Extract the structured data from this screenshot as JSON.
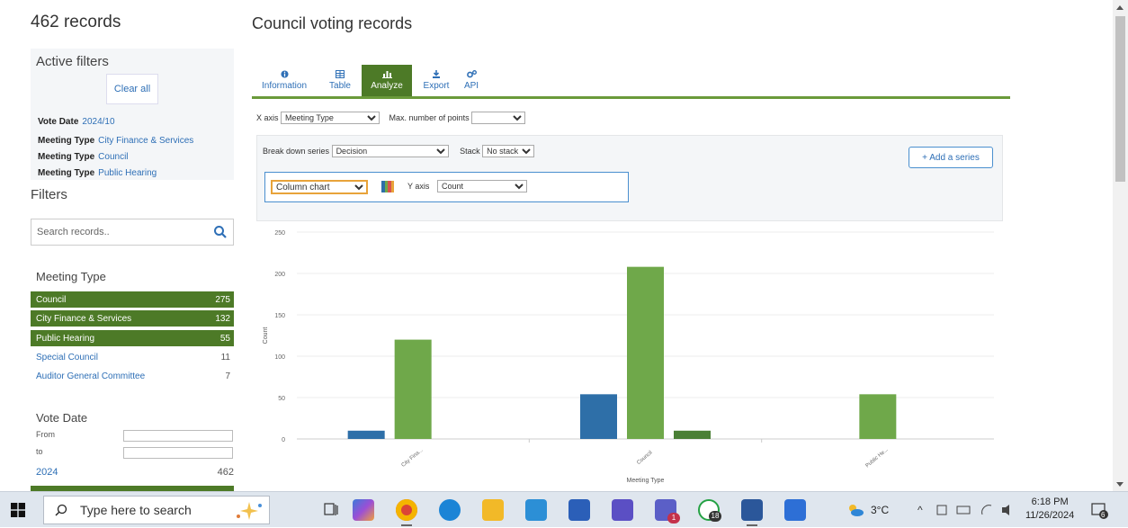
{
  "sidebar": {
    "records_count": "462 records",
    "active_filters": {
      "title": "Active filters",
      "clear_all": "Clear all",
      "items": [
        {
          "label": "Vote Date",
          "value": "2024/10"
        },
        {
          "label": "Meeting Type",
          "value": "City Finance & Services"
        },
        {
          "label": "Meeting Type",
          "value": "Council"
        },
        {
          "label": "Meeting Type",
          "value": "Public Hearing"
        }
      ]
    },
    "filters_title": "Filters",
    "search_placeholder": "Search records..",
    "meeting_type": {
      "title": "Meeting Type",
      "items": [
        {
          "label": "Council",
          "count": "275",
          "selected": true
        },
        {
          "label": "City Finance & Services",
          "count": "132",
          "selected": true
        },
        {
          "label": "Public Hearing",
          "count": "55",
          "selected": true
        },
        {
          "label": "Special Council",
          "count": "11",
          "selected": false
        },
        {
          "label": "Auditor General Committee",
          "count": "7",
          "selected": false
        }
      ]
    },
    "vote_date": {
      "title": "Vote Date",
      "from_label": "From",
      "to_label": "to",
      "year": "2024",
      "year_count": "462"
    }
  },
  "main": {
    "title": "Council voting records",
    "tabs": [
      {
        "label": "Information",
        "icon": "info-icon",
        "active": false
      },
      {
        "label": "Table",
        "icon": "table-icon",
        "active": false
      },
      {
        "label": "Analyze",
        "icon": "chart-icon",
        "active": true
      },
      {
        "label": "Export",
        "icon": "download-icon",
        "active": false
      },
      {
        "label": "API",
        "icon": "gears-icon",
        "active": false
      }
    ],
    "controls": {
      "x_axis_label": "X axis",
      "x_axis_value": "Meeting Type",
      "max_points_label": "Max. number of points",
      "max_points_value": "",
      "breakdown_label": "Break down series",
      "breakdown_value": "Decision",
      "stack_label": "Stack",
      "stack_value": "No stack",
      "chart_type_value": "Column chart",
      "y_axis_label": "Y axis",
      "y_axis_value": "Count",
      "add_series": "+ Add a series"
    }
  },
  "chart_data": {
    "type": "bar",
    "categories": [
      "City Fina...",
      "Council",
      "Public He..."
    ],
    "series": [
      {
        "color": "#2e6fa8",
        "values": [
          10,
          54,
          0
        ]
      },
      {
        "color": "#6fa84a",
        "values": [
          120,
          208,
          54
        ]
      },
      {
        "color": "#4a7f35",
        "values": [
          0,
          10,
          0
        ]
      }
    ],
    "xlabel": "Meeting Type",
    "ylabel": "Count",
    "ylim": [
      0,
      250
    ],
    "yticks": [
      0,
      50,
      100,
      150,
      200,
      250
    ],
    "grid": true
  },
  "taskbar": {
    "search_placeholder": "Type here to search",
    "teams_badge": "1",
    "whatsapp_badge": "18",
    "weather": "3°C",
    "time": "6:18 PM",
    "date": "11/26/2024",
    "notifications": "6"
  }
}
